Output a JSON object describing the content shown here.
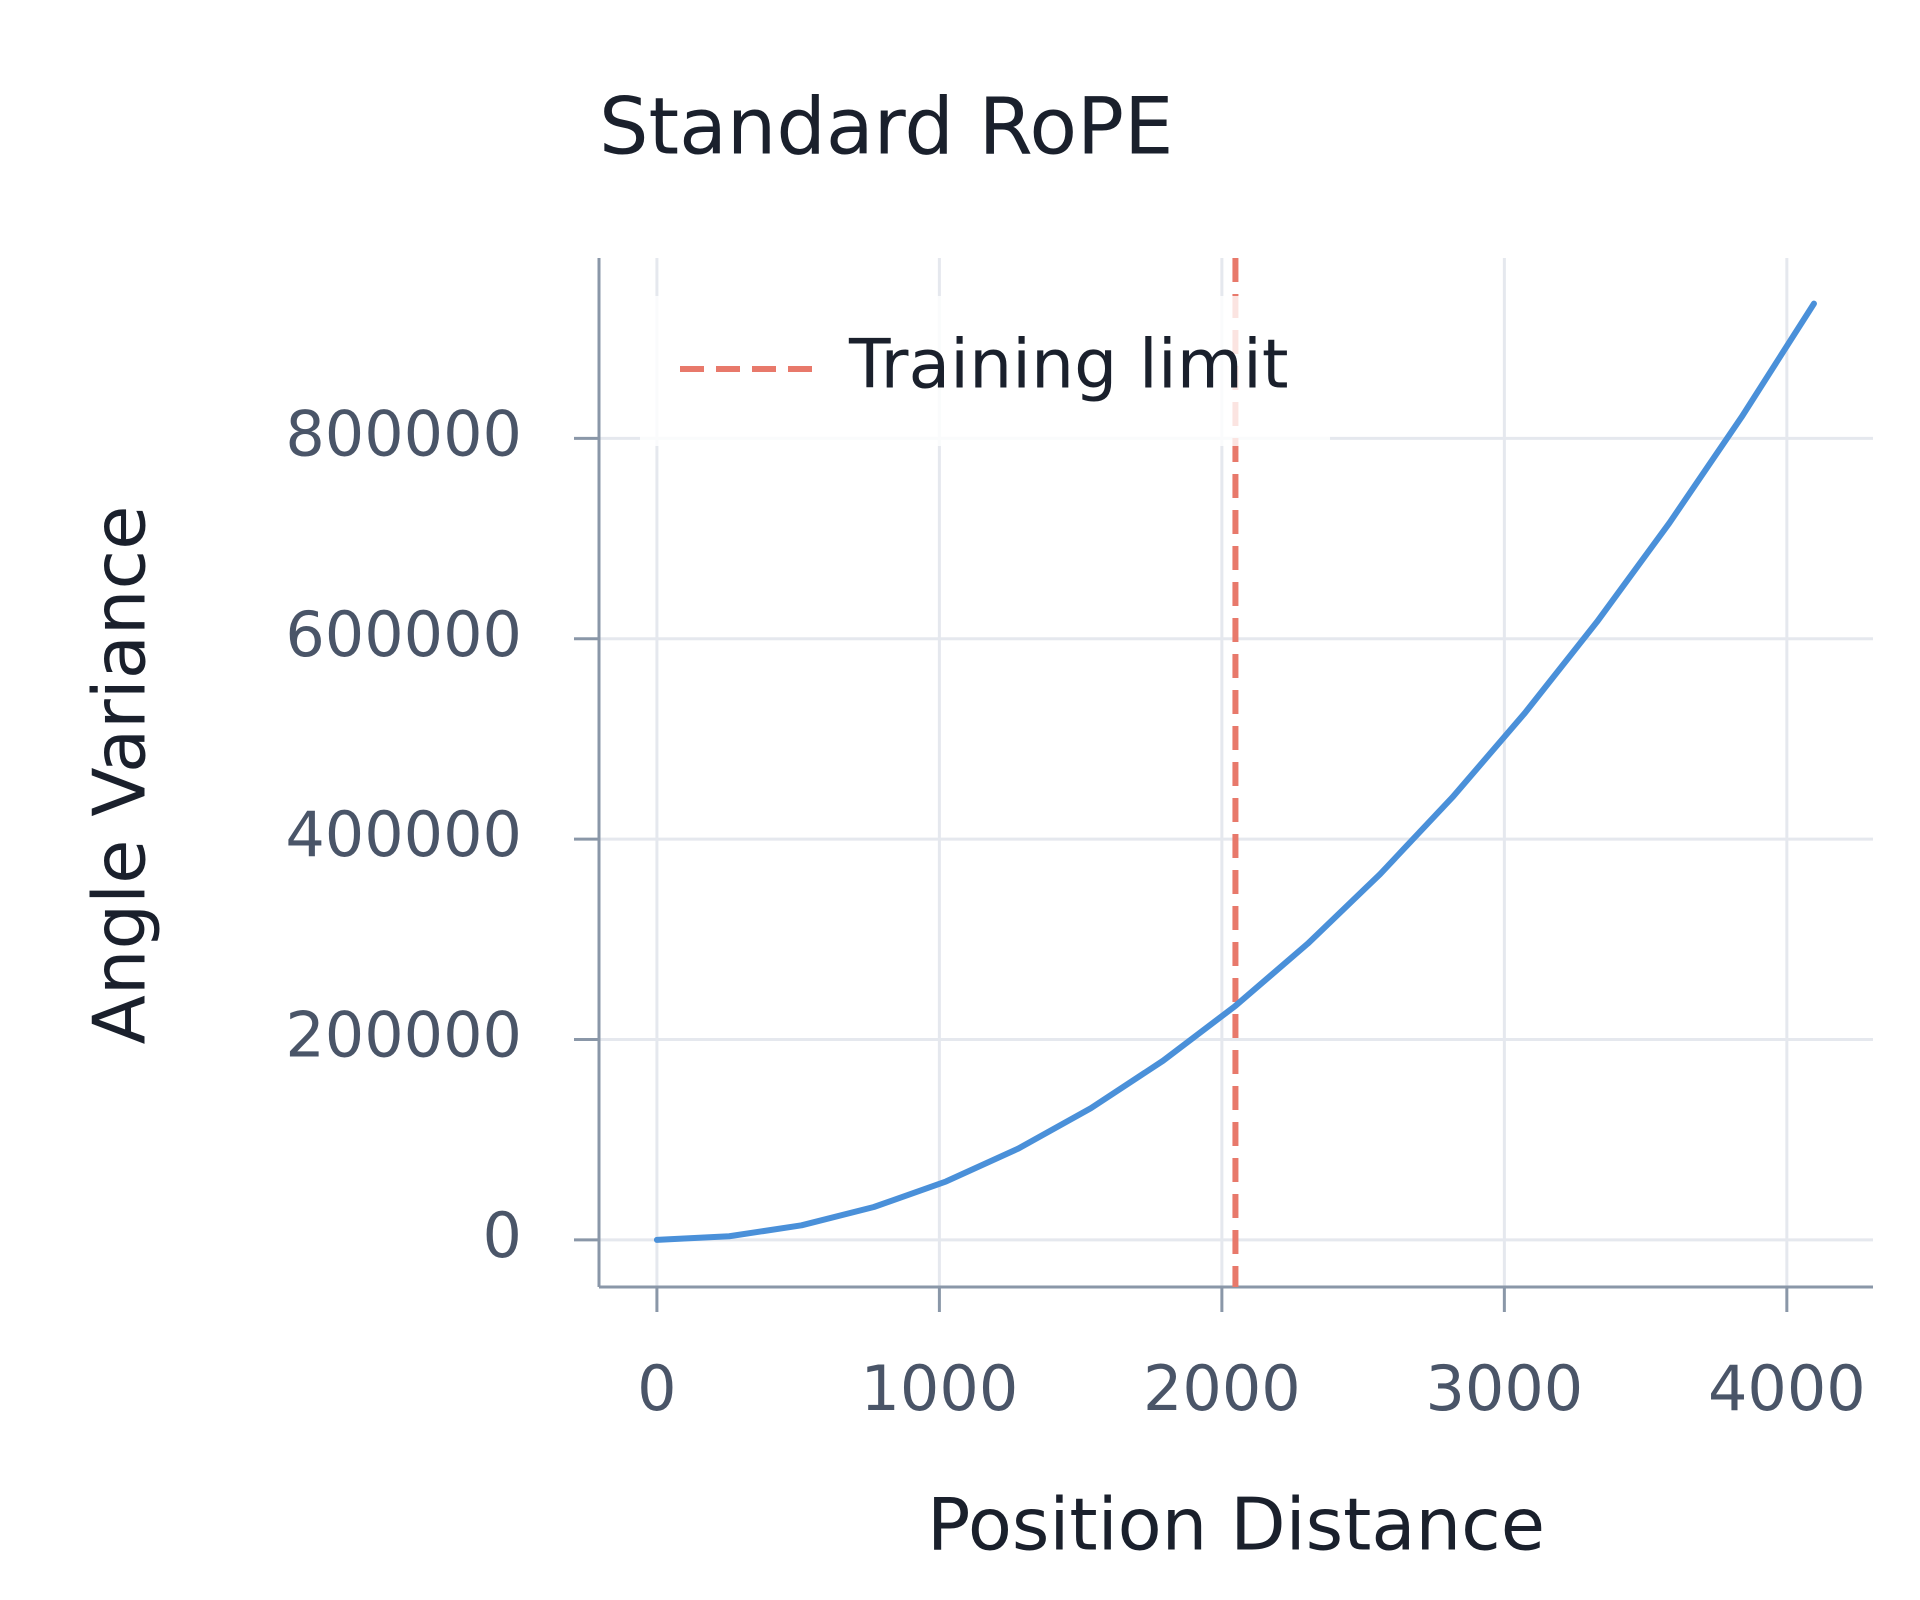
{
  "chart_data": {
    "type": "line",
    "title": "Standard RoPE",
    "x_label": "Position Distance",
    "y_label": "Angle Variance",
    "x": [
      0,
      256,
      512,
      768,
      1024,
      1280,
      1536,
      1792,
      2048,
      2304,
      2560,
      2816,
      3072,
      3328,
      3584,
      3840,
      4096
    ],
    "values": [
      0,
      3650,
      14600,
      32850,
      58400,
      91260,
      131410,
      178870,
      233620,
      295680,
      365040,
      441690,
      525650,
      616910,
      715470,
      821330,
      934490
    ],
    "color": "#4a90d9",
    "vline": {
      "x": 2048,
      "label": "Training limit",
      "color": "#e8796b"
    },
    "xlim": [
      -205,
      4305
    ],
    "xticks": [
      0,
      1000,
      2000,
      3000,
      4000
    ],
    "ylim": [
      -47000,
      980000
    ],
    "yticks": [
      0,
      200000,
      400000,
      600000,
      800000
    ],
    "grid": true
  }
}
